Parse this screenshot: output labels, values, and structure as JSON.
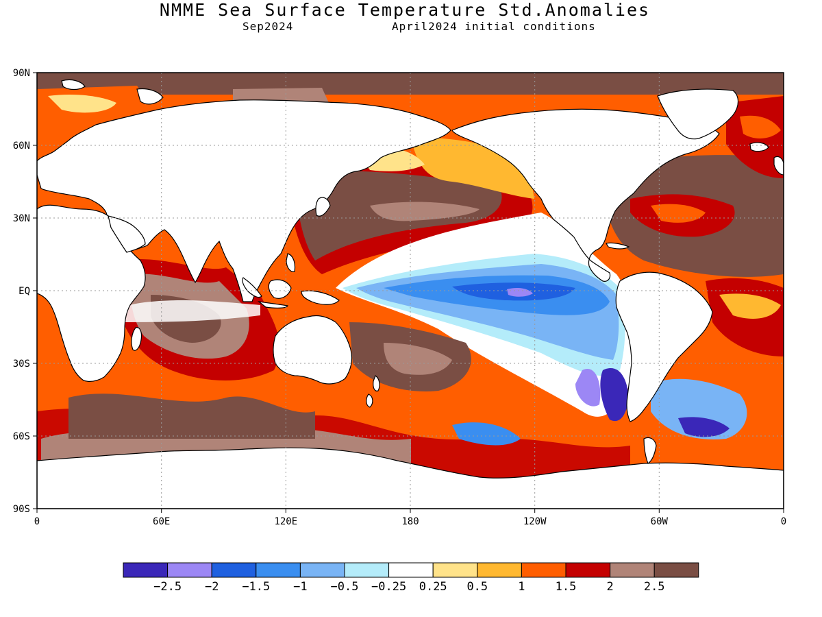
{
  "title": "NMME Sea Surface Temperature Std.Anomalies",
  "subtitle_left": "Sep2024",
  "subtitle_right": "April2024 initial conditions",
  "map": {
    "lat_labels": [
      "90N",
      "60N",
      "30N",
      "EQ",
      "30S",
      "60S",
      "90S"
    ],
    "lon_labels": [
      "0",
      "60E",
      "120E",
      "180",
      "120W",
      "60W",
      "0"
    ],
    "grid": "dotted"
  },
  "legend": {
    "colors": [
      "#3a27b8",
      "#9c87f5",
      "#1f60e0",
      "#3a8ef0",
      "#79b4f5",
      "#b4ecfa",
      "#ffffff",
      "#ffe38a",
      "#ffb830",
      "#ff5e00",
      "#c40000",
      "#b08478",
      "#7a4e44"
    ],
    "labels": [
      "-2.5",
      "-2",
      "-1.5",
      "-1",
      "-0.5",
      "-0.25",
      "0.25",
      "0.5",
      "1",
      "1.5",
      "2",
      "2.5"
    ]
  },
  "palette": {
    "brown": "#7a4e44",
    "tan": "#b08478",
    "red": "#c40000",
    "orange": "#ff5e00",
    "light_orange": "#ffb830",
    "yellow": "#ffe38a",
    "white": "#ffffff",
    "cyan": "#b4ecfa",
    "light_blue": "#79b4f5",
    "blue": "#3a8ef0",
    "deep_blue": "#1f60e0",
    "lavender": "#9c87f5",
    "purple": "#3a27b8"
  }
}
